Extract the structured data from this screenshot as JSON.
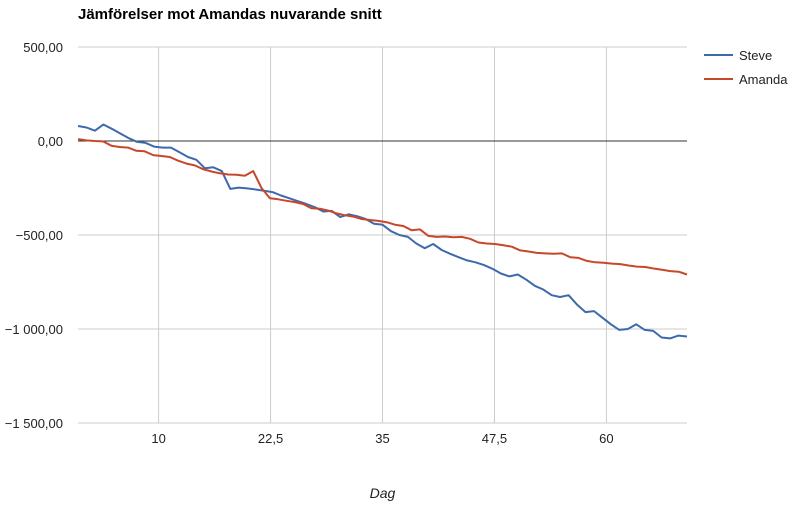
{
  "chart_data": {
    "type": "line",
    "title": "Jämförelser mot Amandas nuvarande snitt",
    "xlabel": "Dag",
    "ylabel": "",
    "xlim": [
      1,
      69
    ],
    "ylim": [
      -1500,
      500
    ],
    "x_ticks": [
      10,
      22.5,
      35,
      47.5,
      60
    ],
    "x_tick_labels": [
      "10",
      "22,5",
      "35",
      "47,5",
      "60"
    ],
    "y_ticks": [
      500,
      0,
      -500,
      -1000,
      -1500
    ],
    "y_tick_labels": [
      "500,00",
      "0,00",
      "−500,00",
      "−1 000,00",
      "−1 500,00"
    ],
    "grid": true,
    "zero_line": true,
    "legend_position": "top-right",
    "series": [
      {
        "name": "Steve",
        "color": "#3d6aac",
        "values": [
          80,
          72,
          55,
          88,
          65,
          40,
          15,
          -5,
          -10,
          -30,
          -35,
          -35,
          -60,
          -85,
          -100,
          -145,
          -140,
          -160,
          -255,
          -248,
          -252,
          -258,
          -265,
          -272,
          -290,
          -305,
          -320,
          -335,
          -352,
          -375,
          -372,
          -405,
          -390,
          -400,
          -415,
          -440,
          -445,
          -480,
          -500,
          -510,
          -545,
          -570,
          -548,
          -580,
          -600,
          -618,
          -635,
          -645,
          -660,
          -680,
          -705,
          -720,
          -710,
          -738,
          -770,
          -790,
          -820,
          -830,
          -820,
          -870,
          -910,
          -905,
          -940,
          -975,
          -1005,
          -1000,
          -975,
          -1005,
          -1010,
          -1045,
          -1050,
          -1035,
          -1040
        ]
      },
      {
        "name": "Amanda",
        "color": "#c7472b",
        "values": [
          10,
          3,
          0,
          -2,
          -25,
          -32,
          -35,
          -52,
          -55,
          -75,
          -80,
          -85,
          -105,
          -120,
          -130,
          -150,
          -162,
          -172,
          -178,
          -180,
          -185,
          -160,
          -250,
          -305,
          -310,
          -318,
          -325,
          -335,
          -358,
          -360,
          -370,
          -385,
          -395,
          -402,
          -415,
          -420,
          -425,
          -432,
          -445,
          -452,
          -475,
          -470,
          -505,
          -510,
          -508,
          -512,
          -510,
          -520,
          -540,
          -545,
          -548,
          -555,
          -562,
          -582,
          -588,
          -595,
          -598,
          -600,
          -598,
          -618,
          -622,
          -638,
          -645,
          -648,
          -652,
          -655,
          -662,
          -668,
          -670,
          -678,
          -685,
          -692,
          -695,
          -710
        ]
      }
    ]
  }
}
